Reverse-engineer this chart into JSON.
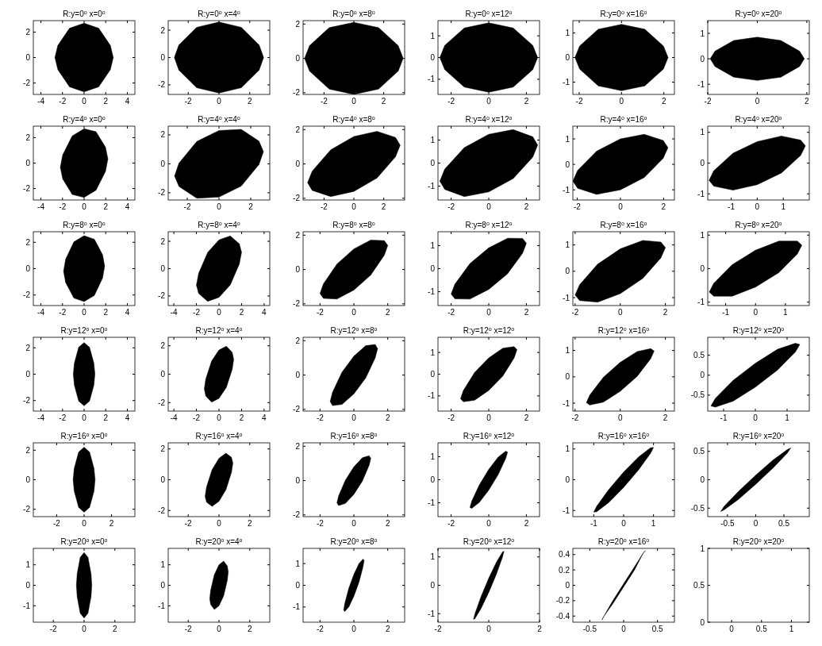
{
  "chart_data": [
    {
      "type": "area",
      "title": "R:y=0$^{o}$ x=0$^{o}$",
      "xlim": [
        -4.7,
        4.7
      ],
      "xticks": [
        -4,
        -2,
        0,
        2,
        4
      ],
      "ylim": [
        -2.9,
        2.9
      ],
      "yticks": [
        -2,
        0,
        2
      ],
      "series": [
        {
          "color": "#000000",
          "x": [
            -2.7,
            -2.43,
            -1.35,
            0,
            1.35,
            2.43,
            2.7,
            2.43,
            1.35,
            0,
            -1.35,
            -2.43,
            -2.7
          ],
          "values": [
            0,
            0.95,
            2.3,
            2.7,
            2.3,
            0.95,
            0,
            -0.95,
            -2.3,
            -2.7,
            -2.3,
            -0.95,
            0
          ]
        }
      ]
    },
    {
      "type": "area",
      "title": "R:y=0$^{o}$ x=4$^{o}$",
      "xlim": [
        -3.3,
        3.3
      ],
      "xticks": [
        -2,
        0,
        2
      ],
      "ylim": [
        -2.7,
        2.7
      ],
      "yticks": [
        -2,
        0,
        2
      ],
      "series": [
        {
          "color": "#000000",
          "x": [
            -2.9,
            -2.61,
            -1.45,
            0,
            1.45,
            2.61,
            2.9,
            2.61,
            1.45,
            0,
            -1.45,
            -2.61,
            -2.9
          ],
          "values": [
            0,
            0.91,
            2.21,
            2.6,
            2.21,
            0.91,
            0,
            -0.91,
            -2.21,
            -2.6,
            -2.21,
            -0.91,
            0
          ]
        }
      ]
    },
    {
      "type": "area",
      "title": "R:y=0$^{o}$ x=8$^{o}$",
      "xlim": [
        -3.4,
        3.4
      ],
      "xticks": [
        -2,
        0,
        2
      ],
      "ylim": [
        -2.1,
        2.2
      ],
      "yticks": [
        -2,
        0,
        2
      ],
      "series": [
        {
          "color": "#000000",
          "x": [
            -3.3,
            -2.97,
            -1.65,
            0,
            1.65,
            2.97,
            3.3,
            2.97,
            1.65,
            0,
            -1.65,
            -2.97,
            -3.3
          ],
          "values": [
            0,
            0.74,
            1.79,
            2.1,
            1.79,
            0.74,
            0,
            -0.74,
            -1.79,
            -2.1,
            -1.79,
            -0.74,
            0
          ]
        }
      ]
    },
    {
      "type": "area",
      "title": "R:y=0$^{o}$ x=12$^{o}$",
      "xlim": [
        -2.7,
        2.7
      ],
      "xticks": [
        -2,
        0,
        2
      ],
      "ylim": [
        -1.7,
        1.7
      ],
      "yticks": [
        -1,
        0,
        1
      ],
      "series": [
        {
          "color": "#000000",
          "x": [
            -2.6,
            -2.34,
            -1.3,
            0,
            1.3,
            2.34,
            2.6,
            2.34,
            1.3,
            0,
            -1.3,
            -2.34,
            -2.6
          ],
          "values": [
            0,
            0.56,
            1.36,
            1.6,
            1.36,
            0.56,
            0,
            -0.56,
            -1.36,
            -1.6,
            -1.36,
            -0.56,
            0
          ]
        }
      ]
    },
    {
      "type": "area",
      "title": "R:y=0$^{o}$ x=16$^{o}$",
      "xlim": [
        -2.3,
        2.5
      ],
      "xticks": [
        -2,
        0,
        2
      ],
      "ylim": [
        -1.5,
        1.5
      ],
      "yticks": [
        -1,
        0,
        1
      ],
      "series": [
        {
          "color": "#000000",
          "x": [
            -2.2,
            -1.98,
            -1.1,
            0,
            1.1,
            1.98,
            2.2,
            1.98,
            1.1,
            0,
            -1.1,
            -1.98,
            -2.2
          ],
          "values": [
            0,
            0.47,
            1.15,
            1.35,
            1.15,
            0.47,
            0,
            -0.47,
            -1.15,
            -1.35,
            -1.15,
            -0.47,
            0
          ]
        }
      ]
    },
    {
      "type": "area",
      "title": "R:y=0$^{o}$ x=20$^{o}$",
      "xlim": [
        -2,
        2.1
      ],
      "xticks": [
        -2,
        0,
        2
      ],
      "ylim": [
        -1.4,
        1.5
      ],
      "yticks": [
        -1,
        0,
        1
      ],
      "series": [
        {
          "color": "#000000",
          "x": [
            -1.9,
            -1.71,
            -0.95,
            0,
            0.95,
            1.71,
            1.9,
            1.71,
            0.95,
            0,
            -0.95,
            -1.71,
            -1.9
          ],
          "values": [
            0,
            0.3,
            0.72,
            0.85,
            0.72,
            0.3,
            0,
            -0.3,
            -0.72,
            -0.85,
            -0.72,
            -0.3,
            0
          ]
        }
      ]
    },
    {
      "type": "area",
      "title": "R:y=4$^{o}$ x=0$^{o}$",
      "xlim": [
        -4.7,
        4.7
      ],
      "xticks": [
        -4,
        -2,
        0,
        2,
        4
      ],
      "ylim": [
        -2.9,
        2.9
      ],
      "yticks": [
        -2,
        0,
        2
      ],
      "series": [
        {
          "color": "#000000",
          "x": [
            -2.2,
            -1.98,
            -1.1,
            0,
            1.1,
            1.98,
            2.2,
            1.98,
            1.1,
            0,
            -1.1,
            -1.98,
            -2.2
          ],
          "values": [
            -0.33,
            0.65,
            2.13,
            2.7,
            2.47,
            1.25,
            0.33,
            -0.65,
            -2.13,
            -2.7,
            -2.47,
            -1.25,
            -0.33
          ]
        }
      ]
    },
    {
      "type": "area",
      "title": "R:y=4$^{o}$ x=4$^{o}$",
      "xlim": [
        -3.2,
        3.2
      ],
      "xticks": [
        -2,
        0,
        2
      ],
      "ylim": [
        -2.5,
        2.6
      ],
      "yticks": [
        -2,
        0,
        2
      ],
      "series": [
        {
          "color": "#000000",
          "x": [
            -2.8,
            -2.52,
            -1.4,
            0,
            1.4,
            2.52,
            2.8,
            2.52,
            1.4,
            0,
            -1.4,
            -2.52,
            -2.8
          ],
          "values": [
            -0.84,
            0.05,
            1.54,
            2.3,
            2.38,
            1.57,
            0.84,
            -0.05,
            -1.54,
            -2.3,
            -2.38,
            -1.57,
            -0.84
          ]
        }
      ]
    },
    {
      "type": "area",
      "title": "R:y=4$^{o}$ x=8$^{o}$",
      "xlim": [
        -3.4,
        3.4
      ],
      "xticks": [
        -2,
        0,
        2
      ],
      "ylim": [
        -2.1,
        2.2
      ],
      "yticks": [
        -2,
        0,
        2
      ],
      "series": [
        {
          "color": "#000000",
          "x": [
            -3.1,
            -2.79,
            -1.55,
            0,
            1.55,
            2.79,
            3.1,
            2.79,
            1.55,
            0,
            -1.55,
            -2.79,
            -3.1
          ],
          "values": [
            -1.09,
            -0.42,
            0.82,
            1.6,
            1.9,
            1.54,
            1.09,
            0.42,
            -0.82,
            -1.6,
            -1.9,
            -1.54,
            -1.09
          ]
        }
      ]
    },
    {
      "type": "area",
      "title": "R:y=4$^{o}$ x=12$^{o}$",
      "xlim": [
        -2.7,
        2.7
      ],
      "xticks": [
        -2,
        0,
        2
      ],
      "ylim": [
        -1.6,
        1.6
      ],
      "yticks": [
        -1,
        0,
        1
      ],
      "series": [
        {
          "color": "#000000",
          "x": [
            -2.6,
            -2.34,
            -1.3,
            0,
            1.3,
            2.34,
            2.6,
            2.34,
            1.3,
            0,
            -1.3,
            -2.34,
            -2.6
          ],
          "values": [
            -0.78,
            -0.26,
            0.67,
            1.25,
            1.45,
            1.14,
            0.78,
            0.26,
            -0.67,
            -1.25,
            -1.45,
            -1.14,
            -0.78
          ]
        }
      ]
    },
    {
      "type": "area",
      "title": "R:y=4$^{o}$ x=16$^{o}$",
      "xlim": [
        -2.2,
        2.5
      ],
      "xticks": [
        -2,
        0,
        2
      ],
      "ylim": [
        -1.4,
        1.5
      ],
      "yticks": [
        -1,
        0,
        1
      ],
      "series": [
        {
          "color": "#000000",
          "x": [
            -2.2,
            -1.98,
            -1.1,
            0,
            1.1,
            1.98,
            2.2,
            1.98,
            1.1,
            0,
            -1.1,
            -1.98,
            -2.2
          ],
          "values": [
            -0.66,
            -0.24,
            0.52,
            1,
            1.18,
            0.94,
            0.66,
            0.24,
            -0.52,
            -1,
            -1.18,
            -0.94,
            -0.66
          ]
        }
      ]
    },
    {
      "type": "area",
      "title": "R:y=4$^{o}$ x=20$^{o}$",
      "xlim": [
        -1.9,
        2
      ],
      "xticks": [
        -1,
        0,
        1
      ],
      "ylim": [
        -1.2,
        1.2
      ],
      "yticks": [
        -1,
        0,
        1
      ],
      "series": [
        {
          "color": "#000000",
          "x": [
            -1.85,
            -1.67,
            -0.93,
            0,
            0.93,
            1.67,
            1.85,
            1.67,
            0.93,
            0,
            -0.93,
            -1.67,
            -1.85
          ],
          "values": [
            -0.56,
            -0.25,
            0.32,
            0.7,
            0.88,
            0.75,
            0.56,
            0.25,
            -0.32,
            -0.7,
            -0.88,
            -0.75,
            -0.56
          ]
        }
      ]
    },
    {
      "type": "area",
      "title": "R:y=8$^{o}$ x=0$^{o}$",
      "xlim": [
        -4.7,
        4.7
      ],
      "xticks": [
        -4,
        -2,
        0,
        2,
        4
      ],
      "ylim": [
        -2.8,
        2.8
      ],
      "yticks": [
        -2,
        0,
        2
      ],
      "series": [
        {
          "color": "#000000",
          "x": [
            -1.9,
            -1.71,
            -0.95,
            0,
            0.95,
            1.71,
            1.9,
            1.71,
            0.95,
            0,
            -0.95,
            -1.71,
            -1.9
          ],
          "values": [
            -0.19,
            0.71,
            2.03,
            2.5,
            2.23,
            1.05,
            0.19,
            -0.71,
            -2.03,
            -2.5,
            -2.23,
            -1.05,
            -0.19
          ]
        }
      ]
    },
    {
      "type": "area",
      "title": "R:y=8$^{o}$ x=4$^{o}$",
      "xlim": [
        -4.5,
        4.5
      ],
      "xticks": [
        -4,
        -2,
        0,
        2,
        4
      ],
      "ylim": [
        -2.7,
        2.7
      ],
      "yticks": [
        -2,
        0,
        2
      ],
      "series": [
        {
          "color": "#000000",
          "x": [
            -2,
            -1.8,
            -1,
            0,
            1,
            1.8,
            2,
            1.8,
            1,
            0,
            -1,
            -1.8,
            -2
          ],
          "values": [
            -1.2,
            -0.34,
            1.19,
            2.1,
            2.39,
            1.82,
            1.2,
            0.34,
            -1.19,
            -2.1,
            -2.39,
            -1.82,
            -1.2
          ]
        }
      ]
    },
    {
      "type": "area",
      "title": "R:y=8$^{o}$ x=8$^{o}$",
      "xlim": [
        -3,
        3
      ],
      "xticks": [
        -2,
        0,
        2
      ],
      "ylim": [
        -2.1,
        2.2
      ],
      "yticks": [
        -2,
        0,
        2
      ],
      "series": [
        {
          "color": "#000000",
          "x": [
            -2,
            -1.8,
            -1,
            0,
            1,
            1.8,
            2,
            1.8,
            1,
            0,
            -1,
            -1.8,
            -2
          ],
          "values": [
            -1.4,
            -0.84,
            0.32,
            1.2,
            1.72,
            1.68,
            1.4,
            0.84,
            -0.32,
            -1.2,
            -1.72,
            -1.68,
            -1.4
          ]
        }
      ]
    },
    {
      "type": "area",
      "title": "R:y=8$^{o}$ x=12$^{o}$",
      "xlim": [
        -2.7,
        2.7
      ],
      "xticks": [
        -2,
        0,
        2
      ],
      "ylim": [
        -1.6,
        1.6
      ],
      "yticks": [
        -1,
        0,
        1
      ],
      "series": [
        {
          "color": "#000000",
          "x": [
            -2,
            -1.8,
            -1,
            0,
            1,
            1.8,
            2,
            1.8,
            1,
            0,
            -1,
            -1.8,
            -2
          ],
          "values": [
            -1.1,
            -0.67,
            0.22,
            0.9,
            1.32,
            1.31,
            1.1,
            0.67,
            -0.22,
            -0.9,
            -1.32,
            -1.31,
            -1.1
          ]
        }
      ]
    },
    {
      "type": "area",
      "title": "R:y=8$^{o}$ x=16$^{o}$",
      "xlim": [
        -2.1,
        2.4
      ],
      "xticks": [
        -2,
        0,
        2
      ],
      "ylim": [
        -1.3,
        1.5
      ],
      "yticks": [
        -1,
        0,
        1
      ],
      "series": [
        {
          "color": "#000000",
          "x": [
            -2,
            -1.8,
            -1,
            0,
            1,
            1.8,
            2,
            1.8,
            1,
            0,
            -1,
            -1.8,
            -2
          ],
          "values": [
            -0.9,
            -0.51,
            0.27,
            0.85,
            1.17,
            1.11,
            0.9,
            0.51,
            -0.27,
            -0.85,
            -1.17,
            -1.11,
            -0.9
          ]
        }
      ]
    },
    {
      "type": "area",
      "title": "R:y=8$^{o}$ x=20$^{o}$",
      "xlim": [
        -1.6,
        1.8
      ],
      "xticks": [
        -1,
        0,
        1
      ],
      "ylim": [
        -1.1,
        1.1
      ],
      "yticks": [
        -1,
        0,
        1
      ],
      "series": [
        {
          "color": "#000000",
          "x": [
            -1.55,
            -1.4,
            -0.78,
            0,
            0.78,
            1.4,
            1.55,
            1.4,
            0.78,
            0,
            -0.78,
            -1.4,
            -1.55
          ],
          "values": [
            -0.7,
            -0.44,
            0.12,
            0.55,
            0.82,
            0.82,
            0.7,
            0.44,
            -0.12,
            -0.55,
            -0.82,
            -0.82,
            -0.7
          ]
        }
      ]
    },
    {
      "type": "area",
      "title": "R:y=12$^{o}$ x=0$^{o}$",
      "xlim": [
        -4.7,
        4.7
      ],
      "xticks": [
        -4,
        -2,
        0,
        2,
        4
      ],
      "ylim": [
        -2.8,
        2.8
      ],
      "yticks": [
        -2,
        0,
        2
      ],
      "series": [
        {
          "color": "#000000",
          "x": [
            -1,
            -0.9,
            -0.5,
            0,
            0.5,
            0.9,
            1,
            0.9,
            0.5,
            0,
            -0.5,
            -0.9,
            -1
          ],
          "values": [
            0,
            0.84,
            2.04,
            2.4,
            2.04,
            0.84,
            0,
            -0.84,
            -2.04,
            -2.4,
            -2.04,
            -0.84,
            0
          ]
        }
      ]
    },
    {
      "type": "area",
      "title": "R:y=12$^{o}$ x=4$^{o}$",
      "xlim": [
        -4.5,
        4.5
      ],
      "xticks": [
        -4,
        -2,
        0,
        2,
        4
      ],
      "ylim": [
        -2.6,
        2.6
      ],
      "yticks": [
        -2,
        0,
        2
      ],
      "series": [
        {
          "color": "#000000",
          "x": [
            -1.3,
            -1.17,
            -0.65,
            0,
            0.65,
            1.17,
            1.3,
            1.17,
            0.65,
            0,
            -0.65,
            -1.17,
            -1.3
          ],
          "values": [
            -1.04,
            -0.34,
            0.93,
            1.7,
            1.97,
            1.54,
            1.04,
            0.34,
            -0.93,
            -1.7,
            -1.97,
            -1.54,
            -1.04
          ]
        }
      ]
    },
    {
      "type": "area",
      "title": "R:y=12$^{o}$ x=8$^{o}$",
      "xlim": [
        -3,
        3
      ],
      "xticks": [
        -2,
        0,
        2
      ],
      "ylim": [
        -2.1,
        2.2
      ],
      "yticks": [
        -2,
        0,
        2
      ],
      "series": [
        {
          "color": "#000000",
          "x": [
            -1.4,
            -1.26,
            -0.7,
            0,
            0.7,
            1.26,
            1.4,
            1.26,
            0.7,
            0,
            -0.7,
            -1.26,
            -1.4
          ],
          "values": [
            -1.54,
            -1,
            0.17,
            1.1,
            1.71,
            1.78,
            1.54,
            1,
            -0.17,
            -1.1,
            -1.71,
            -1.78,
            -1.54
          ]
        }
      ]
    },
    {
      "type": "area",
      "title": "R:y=12$^{o}$ x=12$^{o}$",
      "xlim": [
        -2.7,
        2.7
      ],
      "xticks": [
        -2,
        0,
        2
      ],
      "ylim": [
        -1.7,
        1.7
      ],
      "yticks": [
        -1,
        0,
        1
      ],
      "series": [
        {
          "color": "#000000",
          "x": [
            -1.5,
            -1.35,
            -0.75,
            0,
            0.75,
            1.35,
            1.5,
            1.35,
            0.75,
            0,
            -0.75,
            -1.35,
            -1.5
          ],
          "values": [
            -1.13,
            -0.75,
            0.08,
            0.75,
            1.2,
            1.27,
            1.13,
            0.75,
            -0.08,
            -0.75,
            -1.2,
            -1.27,
            -1.13
          ]
        }
      ]
    },
    {
      "type": "area",
      "title": "R:y=12$^{o}$ x=16$^{o}$",
      "xlim": [
        -2.1,
        2.4
      ],
      "xticks": [
        -2,
        0,
        2
      ],
      "ylim": [
        -1.3,
        1.5
      ],
      "yticks": [
        -1,
        0,
        1
      ],
      "series": [
        {
          "color": "#000000",
          "x": [
            -1.5,
            -1.35,
            -0.75,
            0,
            0.75,
            1.35,
            1.5,
            1.35,
            0.75,
            0,
            -0.75,
            -1.35,
            -1.5
          ],
          "values": [
            -0.98,
            -0.69,
            -0.02,
            0.55,
            0.96,
            1.07,
            0.98,
            0.69,
            0.02,
            -0.55,
            -0.96,
            -1.07,
            -0.98
          ]
        }
      ]
    },
    {
      "type": "area",
      "title": "R:y=12$^{o}$ x=20$^{o}$",
      "xlim": [
        -1.5,
        1.7
      ],
      "xticks": [
        -1,
        0,
        1
      ],
      "ylim": [
        -0.9,
        0.95
      ],
      "yticks": [
        -0.5,
        0,
        0.5
      ],
      "series": [
        {
          "color": "#000000",
          "x": [
            -1.4,
            -1.26,
            -0.7,
            0,
            0.7,
            1.26,
            1.4,
            1.26,
            0.7,
            0,
            -0.7,
            -1.26,
            -1.4
          ],
          "values": [
            -0.77,
            -0.58,
            -0.13,
            0.3,
            0.65,
            0.8,
            0.77,
            0.58,
            0.13,
            -0.3,
            -0.65,
            -0.8,
            -0.77
          ]
        }
      ]
    },
    {
      "type": "area",
      "title": "R:y=16$^{o}$ x=0$^{o}$",
      "xlim": [
        -3.7,
        3.7
      ],
      "xticks": [
        -2,
        0,
        2
      ],
      "ylim": [
        -2.5,
        2.5
      ],
      "yticks": [
        -2,
        0,
        2
      ],
      "series": [
        {
          "color": "#000000",
          "x": [
            -0.8,
            -0.72,
            -0.4,
            0,
            0.4,
            0.72,
            0.8,
            0.72,
            0.4,
            0,
            -0.4,
            -0.72,
            -0.8
          ],
          "values": [
            0,
            0.77,
            1.87,
            2.2,
            1.87,
            0.77,
            0,
            -0.77,
            -1.87,
            -2.2,
            -1.87,
            -0.77,
            0
          ]
        }
      ]
    },
    {
      "type": "area",
      "title": "R:y=16$^{o}$ x=4$^{o}$",
      "xlim": [
        -3.3,
        3.3
      ],
      "xticks": [
        -2,
        0,
        2
      ],
      "ylim": [
        -2.4,
        2.4
      ],
      "yticks": [
        -2,
        0,
        2
      ],
      "series": [
        {
          "color": "#000000",
          "x": [
            -0.9,
            -0.81,
            -0.45,
            0,
            0.45,
            0.81,
            0.9,
            0.81,
            0.45,
            0,
            -0.45,
            -0.81,
            -0.9
          ],
          "values": [
            -1.08,
            -0.48,
            0.65,
            1.4,
            1.73,
            1.46,
            1.08,
            0.48,
            -0.65,
            -1.4,
            -1.73,
            -1.46,
            -1.08
          ]
        }
      ]
    },
    {
      "type": "area",
      "title": "R:y=16$^{o}$ x=8$^{o}$",
      "xlim": [
        -3,
        3
      ],
      "xticks": [
        -2,
        0,
        2
      ],
      "ylim": [
        -2.1,
        2.2
      ],
      "yticks": [
        -2,
        0,
        2
      ],
      "series": [
        {
          "color": "#000000",
          "x": [
            -1,
            -0.9,
            -0.5,
            0,
            0.5,
            0.9,
            1,
            0.9,
            0.5,
            0,
            -0.5,
            -0.9,
            -1
          ],
          "values": [
            -1.3,
            -0.89,
            0.03,
            0.8,
            1.33,
            1.45,
            1.3,
            0.89,
            -0.03,
            -0.8,
            -1.33,
            -1.45,
            -1.3
          ]
        }
      ]
    },
    {
      "type": "area",
      "title": "R:y=16$^{o}$ x=12$^{o}$",
      "xlim": [
        -2.7,
        2.7
      ],
      "xticks": [
        -2,
        0,
        2
      ],
      "ylim": [
        -1.6,
        1.6
      ],
      "yticks": [
        -1,
        0,
        1
      ],
      "series": [
        {
          "color": "#000000",
          "x": [
            -1,
            -0.9,
            -0.5,
            0,
            0.5,
            0.9,
            1,
            0.9,
            0.5,
            0,
            -0.5,
            -0.9,
            -1
          ],
          "values": [
            -1.2,
            -0.92,
            -0.22,
            0.45,
            0.98,
            1.24,
            1.2,
            0.92,
            0.22,
            -0.45,
            -0.98,
            -1.24,
            -1.2
          ]
        }
      ]
    },
    {
      "type": "area",
      "title": "R:y=16$^{o}$ x=16$^{o}$",
      "xlim": [
        -1.7,
        1.7
      ],
      "xticks": [
        -1,
        0,
        1
      ],
      "ylim": [
        -1.2,
        1.2
      ],
      "yticks": [
        -1,
        0,
        1
      ],
      "series": [
        {
          "color": "#000000",
          "x": [
            -1,
            -0.9,
            -0.5,
            0,
            0.5,
            0.9,
            1,
            0.9,
            0.5,
            0,
            -0.5,
            -0.9,
            -1
          ],
          "values": [
            -1.05,
            -0.86,
            -0.32,
            0.25,
            0.74,
            1.04,
            1.05,
            0.86,
            0.32,
            -0.25,
            -0.74,
            -1.04,
            -1.05
          ]
        }
      ]
    },
    {
      "type": "area",
      "title": "R:y=16$^{o}$ x=20$^{o}$",
      "xlim": [
        -0.85,
        0.95
      ],
      "xticks": [
        -0.5,
        0,
        0.5
      ],
      "ylim": [
        -0.65,
        0.65
      ],
      "yticks": [
        -0.5,
        0,
        0.5
      ],
      "series": [
        {
          "color": "#000000",
          "x": [
            -0.62,
            -0.56,
            -0.31,
            0,
            0.31,
            0.56,
            0.62,
            0.56,
            0.31,
            0,
            -0.31,
            -0.56,
            -0.62
          ],
          "values": [
            -0.56,
            -0.47,
            -0.21,
            0.08,
            0.35,
            0.53,
            0.56,
            0.47,
            0.21,
            -0.08,
            -0.35,
            -0.53,
            -0.56
          ]
        }
      ]
    },
    {
      "type": "area",
      "title": "R:y=20$^{o}$ x=0$^{o}$",
      "xlim": [
        -3.3,
        3.3
      ],
      "xticks": [
        -2,
        0,
        2
      ],
      "ylim": [
        -1.8,
        1.8
      ],
      "yticks": [
        -1,
        0,
        1
      ],
      "series": [
        {
          "color": "#000000",
          "x": [
            -0.5,
            -0.45,
            -0.25,
            0,
            0.25,
            0.45,
            0.5,
            0.45,
            0.25,
            0,
            -0.25,
            -0.45,
            -0.5
          ],
          "values": [
            0,
            0.56,
            1.36,
            1.6,
            1.36,
            0.56,
            0,
            -0.56,
            -1.36,
            -1.6,
            -1.36,
            -0.56,
            0
          ]
        }
      ]
    },
    {
      "type": "area",
      "title": "R:y=20$^{o}$ x=4$^{o}$",
      "xlim": [
        -3.3,
        3.3
      ],
      "xticks": [
        -2,
        0,
        2
      ],
      "ylim": [
        -1.8,
        1.8
      ],
      "yticks": [
        -1,
        0,
        1
      ],
      "series": [
        {
          "color": "#000000",
          "x": [
            -0.6,
            -0.54,
            -0.3,
            0,
            0.3,
            0.54,
            0.6,
            0.54,
            0.3,
            0,
            -0.3,
            -0.54,
            -0.6
          ],
          "values": [
            -0.66,
            -0.24,
            0.52,
            1,
            1.18,
            0.94,
            0.66,
            0.24,
            -0.52,
            -1,
            -1.18,
            -0.94,
            -0.66
          ]
        }
      ]
    },
    {
      "type": "area",
      "title": "R:y=20$^{o}$ x=8$^{o}$",
      "xlim": [
        -3,
        3
      ],
      "xticks": [
        -2,
        0,
        2
      ],
      "ylim": [
        -1.7,
        1.7
      ],
      "yticks": [
        -1,
        0,
        1
      ],
      "series": [
        {
          "color": "#000000",
          "x": [
            -0.6,
            -0.54,
            -0.3,
            0,
            0.3,
            0.54,
            0.6,
            0.54,
            0.3,
            0,
            -0.3,
            -0.54,
            -0.6
          ],
          "values": [
            -1.14,
            -0.85,
            -0.14,
            0.5,
            1,
            1.21,
            1.14,
            0.85,
            0.14,
            -0.5,
            -1,
            -1.21,
            -1.14
          ]
        }
      ]
    },
    {
      "type": "area",
      "title": "R:y=20$^{o}$ x=12$^{o}$",
      "xlim": [
        -2,
        2
      ],
      "xticks": [
        -2,
        0,
        2
      ],
      "ylim": [
        -1.3,
        1.3
      ],
      "yticks": [
        -1,
        0,
        1
      ],
      "series": [
        {
          "color": "#000000",
          "x": [
            -0.6,
            -0.54,
            -0.3,
            0,
            0.3,
            0.54,
            0.6,
            0.54,
            0.3,
            0,
            -0.3,
            -0.54,
            -0.6
          ],
          "values": [
            -1.2,
            -0.99,
            -0.39,
            0.25,
            0.81,
            1.17,
            1.2,
            0.99,
            0.39,
            -0.25,
            -0.81,
            -1.17,
            -1.2
          ]
        }
      ]
    },
    {
      "type": "area",
      "title": "R:y=20$^{o}$ x=16$^{o}$",
      "xlim": [
        -0.75,
        0.75
      ],
      "xticks": [
        -0.5,
        0,
        0.5
      ],
      "ylim": [
        -0.48,
        0.48
      ],
      "yticks": [
        -0.4,
        -0.2,
        0,
        0.2,
        0.4
      ],
      "series": [
        {
          "color": "#000000",
          "x": [
            -0.32,
            -0.29,
            -0.16,
            0,
            0.16,
            0.29,
            0.32,
            0.29,
            0.16,
            0,
            -0.16,
            -0.29,
            -0.32
          ],
          "values": [
            -0.45,
            -0.4,
            -0.2,
            0.02,
            0.24,
            0.42,
            0.45,
            0.42,
            0.2,
            -0.02,
            -0.24,
            -0.4,
            -0.45
          ]
        }
      ]
    },
    {
      "type": "area",
      "title": "R:y=20$^{o}$ x=20$^{o}$",
      "xlim": [
        -0.4,
        1.3
      ],
      "xticks": [
        0,
        0.5,
        1
      ],
      "ylim": [
        0,
        1
      ],
      "yticks": [
        0,
        0.5,
        1
      ]
    }
  ]
}
